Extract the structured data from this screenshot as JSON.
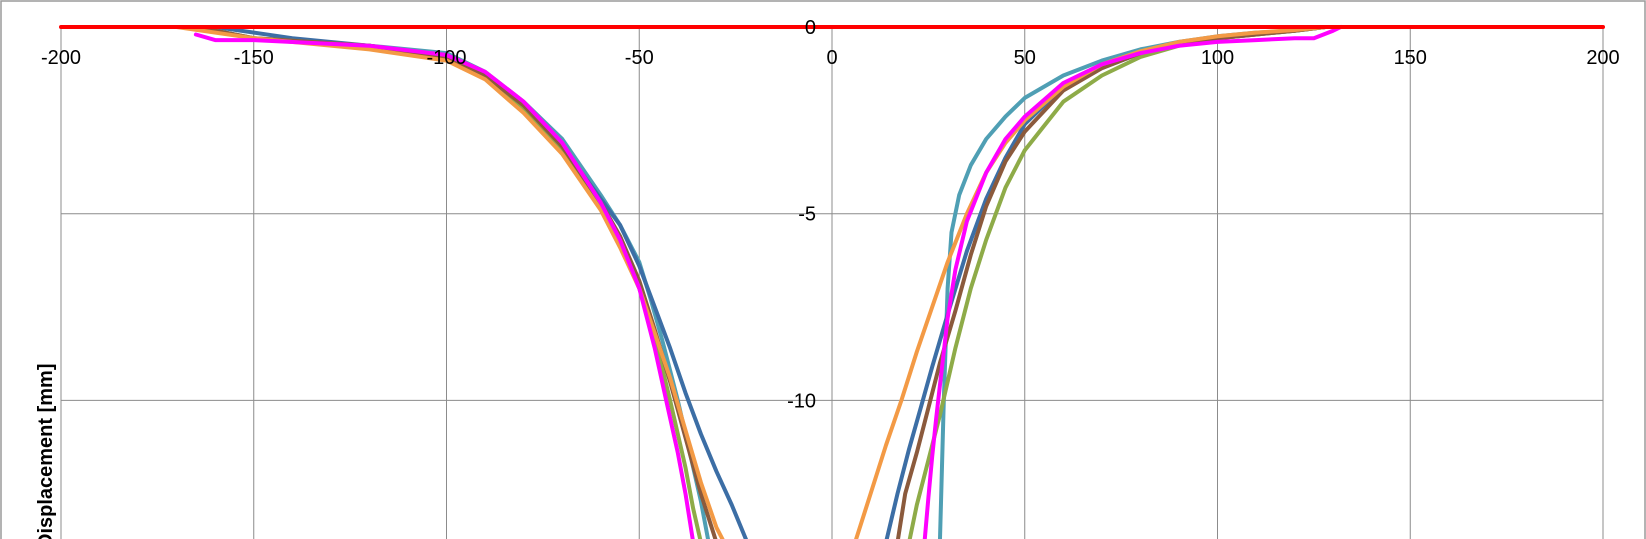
{
  "chart_data": {
    "type": "line",
    "title": "",
    "xlabel": "",
    "ylabel": "Displacement [mm]",
    "xlim": [
      -200,
      200
    ],
    "ylim": [
      -14,
      0
    ],
    "x_ticks": [
      -200,
      -150,
      -100,
      -50,
      0,
      50,
      100,
      150,
      200
    ],
    "y_ticks": [
      0,
      -5,
      -10
    ],
    "grid": true,
    "legend": "none",
    "series": [
      {
        "color": "#ff0000",
        "x": [
          -200,
          200
        ],
        "y": [
          0,
          0
        ]
      },
      {
        "color": "#4f9fb4",
        "x": [
          -165,
          -150,
          -120,
          -100,
          -90,
          -80,
          -70,
          -60,
          -55,
          -50,
          -47,
          -44,
          -42,
          -40,
          -38,
          -36,
          -34,
          -32,
          28,
          29,
          30,
          31,
          33,
          36,
          40,
          45,
          50,
          60,
          70,
          80,
          90,
          100,
          110,
          120,
          128
        ],
        "y": [
          0,
          -0.3,
          -0.5,
          -0.7,
          -1.2,
          -2.0,
          -3.0,
          -4.5,
          -5.3,
          -6.3,
          -7.3,
          -8.4,
          -9.2,
          -10.0,
          -10.9,
          -11.8,
          -12.7,
          -13.8,
          -13.8,
          -10.0,
          -7.0,
          -5.5,
          -4.5,
          -3.7,
          -3.0,
          -2.4,
          -1.9,
          -1.3,
          -0.9,
          -0.6,
          -0.4,
          -0.25,
          -0.15,
          -0.1,
          0
        ]
      },
      {
        "color": "#3c6ea5",
        "x": [
          -160,
          -140,
          -120,
          -100,
          -90,
          -80,
          -70,
          -60,
          -55,
          -50,
          -46,
          -42,
          -38,
          -34,
          -30,
          -26,
          -22,
          14,
          17,
          20,
          23,
          26,
          30,
          35,
          40,
          45,
          50,
          60,
          70,
          80,
          90,
          100,
          110,
          120,
          128
        ],
        "y": [
          0,
          -0.3,
          -0.5,
          -0.8,
          -1.3,
          -2.2,
          -3.2,
          -4.6,
          -5.3,
          -6.4,
          -7.5,
          -8.6,
          -9.8,
          -10.9,
          -11.9,
          -12.8,
          -13.8,
          -13.8,
          -12.5,
          -11.3,
          -10.2,
          -9.1,
          -7.7,
          -6.0,
          -4.6,
          -3.5,
          -2.6,
          -1.6,
          -1.1,
          -0.7,
          -0.45,
          -0.3,
          -0.2,
          -0.1,
          0
        ]
      },
      {
        "color": "#8eab48",
        "x": [
          -165,
          -150,
          -120,
          -100,
          -90,
          -80,
          -70,
          -60,
          -55,
          -50,
          -46,
          -42,
          -38,
          -36,
          -34,
          20,
          22,
          25,
          28,
          32,
          36,
          40,
          45,
          50,
          60,
          70,
          80,
          90,
          100,
          110,
          120,
          128
        ],
        "y": [
          0,
          -0.3,
          -0.5,
          -0.8,
          -1.3,
          -2.2,
          -3.3,
          -4.8,
          -5.8,
          -7.0,
          -8.3,
          -10.0,
          -11.8,
          -12.9,
          -13.8,
          -13.8,
          -12.8,
          -11.6,
          -10.4,
          -8.6,
          -7.0,
          -5.7,
          -4.3,
          -3.3,
          -2.0,
          -1.3,
          -0.8,
          -0.5,
          -0.3,
          -0.2,
          -0.1,
          0
        ]
      },
      {
        "color": "#8b5a3c",
        "x": [
          -165,
          -150,
          -120,
          -100,
          -90,
          -80,
          -70,
          -60,
          -55,
          -50,
          -46,
          -42,
          -38,
          -34,
          -30,
          17,
          19,
          22,
          25,
          28,
          32,
          36,
          40,
          45,
          50,
          60,
          70,
          80,
          90,
          100,
          110,
          120,
          128
        ],
        "y": [
          0,
          -0.3,
          -0.5,
          -0.8,
          -1.3,
          -2.1,
          -3.2,
          -4.7,
          -5.6,
          -6.8,
          -8.1,
          -9.5,
          -11.0,
          -12.5,
          -13.8,
          -13.8,
          -12.5,
          -11.4,
          -10.2,
          -9.0,
          -7.6,
          -6.1,
          -4.8,
          -3.6,
          -2.8,
          -1.7,
          -1.1,
          -0.7,
          -0.45,
          -0.3,
          -0.2,
          -0.1,
          0
        ]
      },
      {
        "color": "#f39a45",
        "x": [
          -170,
          -150,
          -120,
          -100,
          -90,
          -80,
          -70,
          -60,
          -55,
          -50,
          -46,
          -42,
          -38,
          -34,
          -30,
          -28,
          6,
          10,
          14,
          18,
          22,
          26,
          30,
          35,
          40,
          45,
          50,
          60,
          70,
          80,
          90,
          100,
          110,
          120,
          128
        ],
        "y": [
          0,
          -0.3,
          -0.6,
          -0.9,
          -1.4,
          -2.3,
          -3.4,
          -4.9,
          -5.9,
          -7.0,
          -8.2,
          -9.4,
          -10.8,
          -12.2,
          -13.4,
          -13.8,
          -13.8,
          -12.5,
          -11.2,
          -10.0,
          -8.7,
          -7.5,
          -6.3,
          -5.0,
          -3.9,
          -3.1,
          -2.5,
          -1.6,
          -1.0,
          -0.65,
          -0.4,
          -0.25,
          -0.15,
          -0.08,
          0
        ]
      },
      {
        "color": "#ff00ff",
        "x": [
          -165,
          -160,
          -150,
          -120,
          -100,
          -90,
          -80,
          -70,
          -60,
          -55,
          -50,
          -46,
          -43,
          -40,
          -38,
          -36,
          24,
          25,
          26,
          27,
          28,
          29,
          30,
          32,
          35,
          40,
          45,
          50,
          60,
          70,
          80,
          90,
          100,
          110,
          120,
          125,
          130,
          132
        ],
        "y": [
          -0.2,
          -0.35,
          -0.35,
          -0.5,
          -0.75,
          -1.2,
          -2.0,
          -3.1,
          -4.7,
          -5.7,
          -7.0,
          -8.6,
          -10.0,
          -11.4,
          -12.5,
          -13.8,
          -13.8,
          -12.6,
          -11.5,
          -10.5,
          -9.6,
          -8.7,
          -7.8,
          -6.5,
          -5.2,
          -3.9,
          -3.0,
          -2.4,
          -1.5,
          -1.0,
          -0.7,
          -0.5,
          -0.4,
          -0.35,
          -0.3,
          -0.3,
          -0.1,
          0
        ]
      }
    ]
  }
}
